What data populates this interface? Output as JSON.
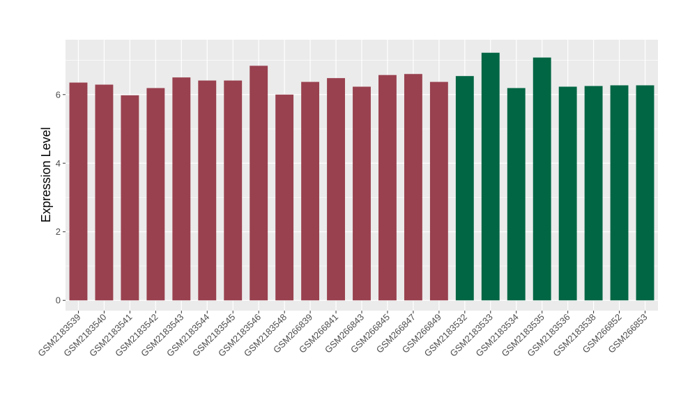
{
  "chart_data": {
    "type": "bar",
    "title": "",
    "xlabel": "",
    "ylabel": "Expression Level",
    "ylim": [
      -0.3,
      7.6
    ],
    "yticks": [
      0,
      2,
      4,
      6
    ],
    "grid": true,
    "legend": "none",
    "categories": [
      "GSM2183539",
      "GSM2183540",
      "GSM2183541",
      "GSM2183542",
      "GSM2183543",
      "GSM2183544",
      "GSM2183545",
      "GSM2183546",
      "GSM2183548",
      "GSM266839",
      "GSM266841",
      "GSM266843",
      "GSM266845",
      "GSM266847",
      "GSM266849",
      "GSM2183532",
      "GSM2183533",
      "GSM2183534",
      "GSM2183535",
      "GSM2183536",
      "GSM2183538",
      "GSM266852",
      "GSM266853"
    ],
    "values": [
      6.35,
      6.29,
      5.98,
      6.19,
      6.5,
      6.41,
      6.41,
      6.84,
      6.0,
      6.37,
      6.48,
      6.23,
      6.57,
      6.6,
      6.37,
      6.54,
      7.22,
      6.19,
      7.08,
      6.23,
      6.25,
      6.27,
      6.27
    ],
    "bar_colors": [
      "#99414f",
      "#99414f",
      "#99414f",
      "#99414f",
      "#99414f",
      "#99414f",
      "#99414f",
      "#99414f",
      "#99414f",
      "#99414f",
      "#99414f",
      "#99414f",
      "#99414f",
      "#99414f",
      "#99414f",
      "#006644",
      "#006644",
      "#006644",
      "#006644",
      "#006644",
      "#006644",
      "#006644",
      "#006644"
    ],
    "panel_background": "#ebebeb",
    "grid_color": "#ffffff"
  }
}
